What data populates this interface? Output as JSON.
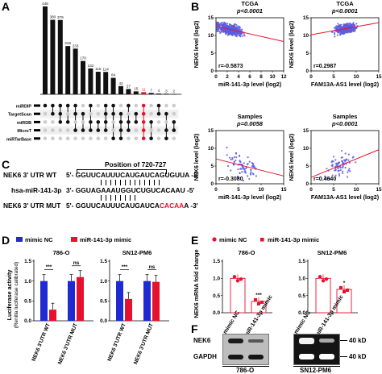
{
  "panel_labels": {
    "a": "A",
    "b": "B",
    "c": "C",
    "d": "D",
    "e": "E",
    "f": "F"
  },
  "colors": {
    "black": "#111111",
    "red": "#e8112d",
    "blue": "#1f2bd0",
    "grid_dot": "#cccccc",
    "scatter_blue": "#5a5ce0"
  },
  "upset": {
    "databases": [
      "miRDIP",
      "TargetScan",
      "miRDB",
      "MicroT",
      "miRTarBase"
    ],
    "highlight_index": 13
  },
  "panel_c": {
    "position_label": "Position of 720-727",
    "rows": [
      {
        "label": "NEK6 3' UTR WT",
        "seq_before": "5'- GGUUCAUUUCAUGAUCAGUGUUA -3'",
        "seq_red": "",
        "seq_after": ""
      },
      {
        "label": "hsa-miR-141-3p",
        "seq_before": "3'- GGUAGAAAUGGUCUGUCACAAU -5'",
        "seq_red": "",
        "seq_after": ""
      },
      {
        "label": "NEK6 3' UTR MUT",
        "seq_before": "5'- GGUUCAUUUCAUGAUCA",
        "seq_red": "CACAA",
        "seq_after": "A -3'"
      }
    ]
  },
  "panel_d": {
    "legend": [
      "mimic NC",
      "miR-141-3p mimic"
    ],
    "ylabel_lines": [
      "Luciferase activity",
      "(Renilla luciferase calibrated)"
    ],
    "yticks": [
      "0.0",
      "0.5",
      "1.0",
      "1.5"
    ],
    "xticks": [
      "NEK6 3'UTR WT",
      "NEK6 3'UTR MUT"
    ],
    "sig": [
      "***",
      "ns"
    ],
    "subtitles": [
      "786-O",
      "SN12-PM6"
    ]
  },
  "panel_e": {
    "legend": [
      "mimic NC",
      "miR-141-3p mimic"
    ],
    "ylabel": "NEK6 mRNA fold change",
    "yticks": [
      "0.0",
      "0.5",
      "1.0",
      "1.5"
    ],
    "subtitles": [
      "786-O",
      "SN12-PM6"
    ],
    "sig": [
      "***",
      "*"
    ]
  },
  "panel_f": {
    "columns": [
      "mimic NC",
      "miR-141-3p mimic",
      "mimic NC",
      "miR-141-3p mimic"
    ],
    "rows": [
      "NEK6",
      "GAPDH"
    ],
    "mw": [
      "40 kD",
      "40 kD"
    ],
    "cells": [
      "786-O",
      "SN12-PM6"
    ]
  },
  "chart_data": [
    {
      "type": "bar",
      "id": "upset",
      "values": [
        448,
        380,
        379,
        246,
        233,
        170,
        132,
        115,
        114,
        84,
        42,
        27,
        15,
        11,
        7,
        4,
        3,
        2
      ],
      "labels": [
        "448",
        "380",
        "379",
        "246",
        "233",
        "170",
        "132",
        "115",
        "114",
        "84",
        "42",
        "27",
        "15",
        "11",
        "7",
        "4",
        "3",
        "2"
      ],
      "matrix": [
        [
          1,
          1,
          1,
          1,
          1,
          0,
          1,
          0,
          1,
          1,
          0,
          1,
          0,
          1,
          0,
          1,
          0,
          0
        ],
        [
          0,
          1,
          1,
          0,
          1,
          1,
          0,
          0,
          1,
          1,
          1,
          0,
          1,
          1,
          0,
          1,
          1,
          0
        ],
        [
          0,
          0,
          1,
          1,
          0,
          0,
          1,
          1,
          1,
          0,
          1,
          1,
          1,
          1,
          1,
          0,
          0,
          1
        ],
        [
          0,
          0,
          0,
          0,
          1,
          1,
          1,
          1,
          1,
          0,
          1,
          1,
          0,
          1,
          0,
          0,
          1,
          1
        ],
        [
          0,
          0,
          0,
          0,
          0,
          0,
          0,
          0,
          0,
          1,
          1,
          0,
          0,
          1,
          1,
          0,
          1,
          0
        ]
      ]
    },
    {
      "type": "scatter",
      "id": "b1",
      "title": "TCGA",
      "pvalue": "p<0.0001",
      "r": "r=-0.5873",
      "xlabel": "miR-141-3p level (log2)",
      "ylabel": "NEK6 level (log2)",
      "xlim": [
        0,
        12
      ],
      "ylim": [
        0,
        15
      ],
      "xticks": [
        0,
        2,
        4,
        6,
        8,
        10,
        12
      ],
      "yticks": [
        0,
        5,
        10,
        15
      ],
      "fit": [
        [
          0,
          12.6
        ],
        [
          12,
          8.3
        ]
      ]
    },
    {
      "type": "scatter",
      "id": "b2",
      "title": "TCGA",
      "pvalue": "p<0.0001",
      "r": "r=0.2987",
      "xlabel": "FAM13A-AS1 level (log2)",
      "ylabel": "NEK6 level (log2)",
      "xlim": [
        0,
        15
      ],
      "ylim": [
        0,
        15
      ],
      "xticks": [
        0,
        5,
        10,
        15
      ],
      "yticks": [
        0,
        5,
        10,
        15
      ],
      "fit": [
        [
          0,
          10.2
        ],
        [
          15,
          13.6
        ]
      ]
    },
    {
      "type": "scatter",
      "id": "b3",
      "title": "Samples",
      "pvalue": "p=0.0058",
      "r": "r=-0.3080",
      "xlabel": "miR-141-3p level (log2)",
      "ylabel": "NEK6 level (log2)",
      "xlim": [
        0,
        15
      ],
      "ylim": [
        0,
        15
      ],
      "xticks": [
        0,
        5,
        10,
        15
      ],
      "yticks": [
        0,
        5,
        10,
        15
      ],
      "fit": [
        [
          0,
          7.0
        ],
        [
          15,
          2.2
        ]
      ]
    },
    {
      "type": "scatter",
      "id": "b4",
      "title": "Samples",
      "pvalue": "p<0.0001",
      "r": "r=0.4640",
      "xlabel": "FAM13A-AS1 level (log2)",
      "ylabel": "NEK6 level (log2)",
      "xlim": [
        0,
        15
      ],
      "ylim": [
        0,
        15
      ],
      "xticks": [
        0,
        5,
        10,
        15
      ],
      "yticks": [
        0,
        5,
        10,
        15
      ],
      "fit": [
        [
          0,
          1.8
        ],
        [
          15,
          9.6
        ]
      ]
    },
    {
      "type": "bar",
      "id": "d1",
      "title": "786-O",
      "categories": [
        "NEK6 3'UTR WT",
        "NEK6 3'UTR MUT"
      ],
      "series": [
        {
          "name": "mimic NC",
          "values": [
            1.0,
            1.0
          ]
        },
        {
          "name": "miR-141-3p mimic",
          "values": [
            0.28,
            1.1
          ]
        }
      ],
      "ylim": [
        0,
        1.5
      ]
    },
    {
      "type": "bar",
      "id": "d2",
      "title": "SN12-PM6",
      "categories": [
        "NEK6 3'UTR WT",
        "NEK6 3'UTR MUT"
      ],
      "series": [
        {
          "name": "mimic NC",
          "values": [
            1.0,
            1.0
          ]
        },
        {
          "name": "miR-141-3p mimic",
          "values": [
            0.55,
            0.98
          ]
        }
      ],
      "ylim": [
        0,
        1.5
      ]
    },
    {
      "type": "bar",
      "id": "e1",
      "title": "786-O",
      "categories": [
        "mimic NC",
        "miR-141-3p mimic"
      ],
      "values": [
        1.0,
        0.33
      ],
      "ylim": [
        0,
        1.5
      ]
    },
    {
      "type": "bar",
      "id": "e2",
      "title": "SN12-PM6",
      "categories": [
        "mimic NC",
        "miR-141-3p mimic"
      ],
      "values": [
        1.0,
        0.68
      ],
      "ylim": [
        0,
        1.5
      ]
    }
  ]
}
